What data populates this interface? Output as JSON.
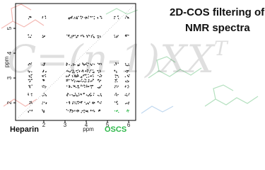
{
  "header": {
    "title": "2D-COS filtering of ",
    "title_superscript": "1",
    "title_nucleus": "H",
    "title_line2": "NMR spectra"
  },
  "formula": {
    "text": "C=(n-1)XX",
    "superscript": "T"
  },
  "plot": {
    "x_label": "ppm",
    "y_label": "ppm",
    "xlim": [
      0.67,
      6.33
    ],
    "xticks": [
      2,
      3,
      4,
      5,
      6
    ],
    "ylim": [
      1.29,
      6.0
    ],
    "yticks": [
      2,
      3,
      4,
      5
    ]
  },
  "labels": {
    "left": "Heparin",
    "right": "OSCS"
  }
}
